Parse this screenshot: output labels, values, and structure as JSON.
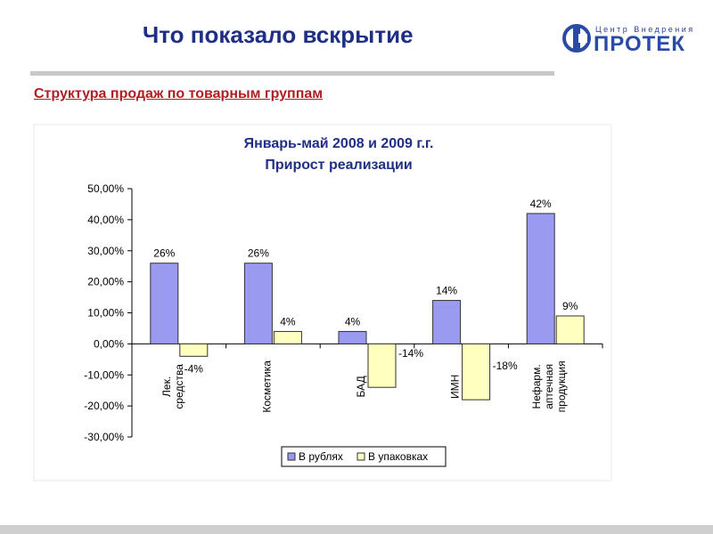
{
  "slide": {
    "title": "Что показало вскрытие",
    "subtitle": "Структура продаж по товарным группам"
  },
  "logo": {
    "sub_text": "Центр Внедрения",
    "main_text": "ПРОТЕК"
  },
  "colors": {
    "title": "#1f2f85",
    "subtitle": "#b01e24",
    "series_rub": "#9a9af0",
    "series_pack": "#ffffc0"
  },
  "chart_data": {
    "type": "bar",
    "title": "Январь-май 2008 и 2009 г.г.",
    "subtitle": "Прирост реализации",
    "categories": [
      "Лек. средства",
      "Косметика",
      "БАД",
      "ИМН",
      "Нефарм. аптечная продукция"
    ],
    "series": [
      {
        "name": "В рублях",
        "values": [
          0.26,
          0.26,
          0.04,
          0.14,
          0.42
        ],
        "labels": [
          "26%",
          "26%",
          "4%",
          "14%",
          "42%"
        ]
      },
      {
        "name": "В упаковках",
        "values": [
          -0.04,
          0.04,
          -0.14,
          -0.18,
          0.09
        ],
        "labels": [
          "-4%",
          "4%",
          "-14%",
          "-18%",
          "9%"
        ]
      }
    ],
    "ylim": [
      -0.3,
      0.5
    ],
    "yticks": [
      "50,00%",
      "40,00%",
      "30,00%",
      "20,00%",
      "10,00%",
      "0,00%",
      "-10,00%",
      "-20,00%",
      "-30,00%"
    ],
    "grid": false,
    "legend": "bottom"
  }
}
